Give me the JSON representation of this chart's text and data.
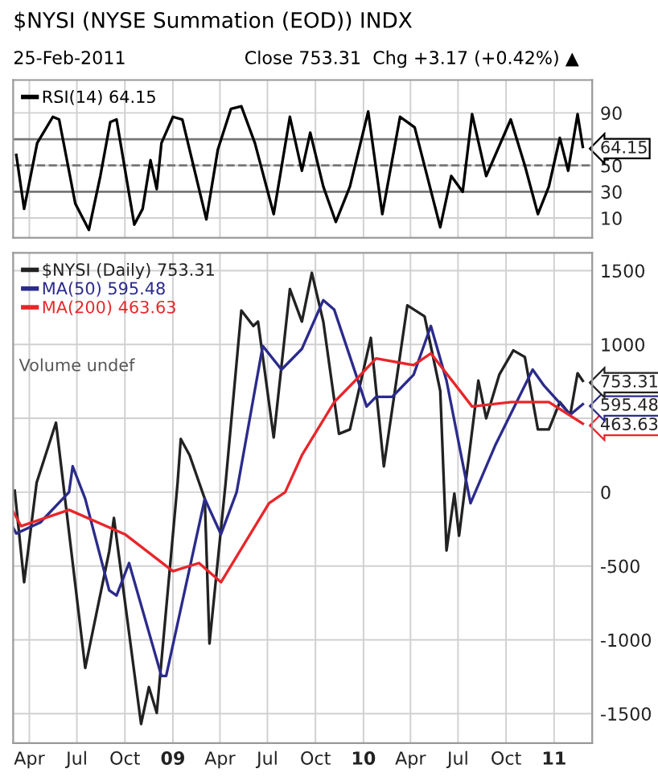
{
  "chart_data": [
    {
      "type": "line",
      "title": "$NYSI (NYSE Summation (EOD)) INDX",
      "subtitle": "25-Feb-2011",
      "annotations": [
        "Close 753.31  Chg +3.17 (+0.42%) ▲"
      ],
      "xticks": [
        {
          "value": "2008-04-01",
          "label": null
        },
        {
          "value": "2008-07-01",
          "label": null
        },
        {
          "value": "2008-10-01",
          "label": null
        },
        {
          "value": "2009-01-01",
          "label": null
        },
        {
          "value": "2009-04-01",
          "label": null
        },
        {
          "value": "2009-07-01",
          "label": null
        },
        {
          "value": "2009-10-01",
          "label": null
        },
        {
          "value": "2010-01-01",
          "label": null
        },
        {
          "value": "2010-04-01",
          "label": null
        },
        {
          "value": "2010-07-01",
          "label": null
        },
        {
          "value": "2010-10-01",
          "label": null
        },
        {
          "value": "2011-01-01",
          "label": null
        }
      ],
      "series": [
        {
          "name": "RSI(14) 64.15",
          "color": "#000000",
          "x": [
            "2008-03-07",
            "2008-03-22",
            "2008-04-16",
            "2008-05-16",
            "2008-05-28",
            "2008-06-28",
            "2008-07-24",
            "2008-08-15",
            "2008-09-03",
            "2008-09-15",
            "2008-10-19",
            "2008-11-04",
            "2008-11-19",
            "2008-12-01",
            "2008-12-10",
            "2009-01-01",
            "2009-01-19",
            "2009-03-06",
            "2009-03-28",
            "2009-04-22",
            "2009-05-12",
            "2009-06-07",
            "2009-07-13",
            "2009-08-13",
            "2009-09-05",
            "2009-09-21",
            "2009-10-16",
            "2009-11-09",
            "2009-12-06",
            "2010-01-10",
            "2010-02-06",
            "2010-03-12",
            "2010-04-09",
            "2010-05-28",
            "2010-06-18",
            "2010-07-10",
            "2010-07-28",
            "2010-08-24",
            "2010-10-10",
            "2010-11-06",
            "2010-12-01",
            "2010-12-22",
            "2011-01-12",
            "2011-01-28",
            "2011-02-15",
            "2011-02-25"
          ],
          "values": [
            58,
            17,
            67,
            87,
            85,
            21,
            1,
            42,
            83,
            85,
            5,
            17,
            54,
            32,
            67,
            87,
            85,
            9,
            62,
            93,
            95,
            67,
            13,
            87,
            46,
            75,
            34,
            7,
            34,
            91,
            13,
            87,
            79,
            3,
            42,
            30,
            89,
            42,
            85,
            50,
            13,
            34,
            71,
            46,
            89,
            64.15
          ]
        }
      ],
      "xlim": [
        "2008-03-01",
        "2011-03-15"
      ],
      "ylim": [
        -5,
        115
      ],
      "yticks": [
        10,
        30,
        50,
        {
          "value": 64.15,
          "label": "64.15"
        },
        90
      ],
      "ref_lines": [
        {
          "axis": "y",
          "value": 70,
          "color": "#777777",
          "line_style": "solid"
        },
        {
          "axis": "y",
          "value": 50,
          "color": "#777777",
          "line_style": "dashed"
        },
        {
          "axis": "y",
          "value": 30,
          "color": "#777777",
          "line_style": "solid"
        }
      ],
      "grid": true,
      "legend": "top left",
      "tick_labels": "y"
    },
    {
      "type": "line",
      "annotations": [
        "Volume undef"
      ],
      "series": [
        {
          "name": "$NYSI (Daily) 753.31",
          "color": "#222222",
          "x": [
            "2008-03-04",
            "2008-03-22",
            "2008-04-15",
            "2008-05-22",
            "2008-07-17",
            "2008-09-01",
            "2008-09-10",
            "2008-11-01",
            "2008-11-16",
            "2008-12-01",
            "2009-01-10",
            "2009-01-16",
            "2009-02-02",
            "2009-03-03",
            "2009-03-12",
            "2009-04-12",
            "2009-05-12",
            "2009-06-04",
            "2009-06-13",
            "2009-07-13",
            "2009-08-13",
            "2009-09-05",
            "2009-09-24",
            "2009-10-16",
            "2009-11-15",
            "2009-12-06",
            "2010-01-15",
            "2010-02-09",
            "2010-03-26",
            "2010-04-28",
            "2010-05-28",
            "2010-06-09",
            "2010-06-24",
            "2010-07-03",
            "2010-08-09",
            "2010-08-24",
            "2010-09-18",
            "2010-10-15",
            "2010-11-06",
            "2010-12-01",
            "2010-12-22",
            "2011-01-12",
            "2011-02-01",
            "2011-02-15",
            "2011-02-25"
          ],
          "values": [
            10,
            -610,
            65,
            470,
            -1190,
            -400,
            -175,
            -1570,
            -1320,
            -1495,
            65,
            360,
            250,
            -45,
            -1025,
            65,
            1230,
            1125,
            1155,
            370,
            1375,
            1155,
            1485,
            1155,
            395,
            425,
            1045,
            175,
            1265,
            1190,
            685,
            -395,
            -10,
            -295,
            755,
            500,
            795,
            960,
            915,
            425,
            425,
            610,
            525,
            805,
            753.31
          ]
        },
        {
          "name": "MA(50) 595.48",
          "color": "#2b2b8c",
          "x": [
            "2008-03-01",
            "2008-03-07",
            "2008-04-22",
            "2008-06-16",
            "2008-06-23",
            "2008-07-17",
            "2008-09-01",
            "2008-09-15",
            "2008-10-09",
            "2008-12-10",
            "2008-12-19",
            "2009-03-03",
            "2009-04-03",
            "2009-05-03",
            "2009-06-22",
            "2009-07-28",
            "2009-09-05",
            "2009-10-16",
            "2009-11-06",
            "2010-01-07",
            "2010-01-25",
            "2010-02-25",
            "2010-04-07",
            "2010-05-10",
            "2010-06-09",
            "2010-07-25",
            "2010-09-10",
            "2010-11-21",
            "2010-12-13",
            "2011-02-01",
            "2011-02-25"
          ],
          "values": [
            -240,
            -280,
            -205,
            0,
            175,
            -45,
            -665,
            -700,
            -480,
            -1245,
            -1245,
            -45,
            -285,
            0,
            990,
            830,
            970,
            1300,
            1235,
            580,
            645,
            645,
            795,
            1125,
            755,
            -75,
            315,
            830,
            720,
            525,
            595.48
          ]
        },
        {
          "name": "MA(200) 463.63",
          "color": "#e8262b",
          "x": [
            "2008-03-01",
            "2008-03-16",
            "2008-06-16",
            "2008-10-01",
            "2009-01-01",
            "2009-02-20",
            "2009-04-03",
            "2009-07-04",
            "2009-08-04",
            "2009-09-05",
            "2009-11-06",
            "2009-12-16",
            "2010-01-25",
            "2010-04-07",
            "2010-05-10",
            "2010-07-28",
            "2010-10-11",
            "2010-12-22",
            "2011-02-25"
          ],
          "values": [
            -130,
            -230,
            -120,
            -285,
            -535,
            -480,
            -610,
            -75,
            0,
            250,
            610,
            755,
            905,
            860,
            940,
            580,
            610,
            610,
            463.63
          ]
        }
      ],
      "xlim": [
        "2008-03-01",
        "2011-03-15"
      ],
      "xticks": [
        {
          "value": "2008-04-01",
          "label": "Apr"
        },
        {
          "value": "2008-07-01",
          "label": "Jul"
        },
        {
          "value": "2008-10-01",
          "label": "Oct"
        },
        {
          "value": "2009-01-01",
          "label": "09"
        },
        {
          "value": "2009-04-01",
          "label": "Apr"
        },
        {
          "value": "2009-07-01",
          "label": "Jul"
        },
        {
          "value": "2009-10-01",
          "label": "Oct"
        },
        {
          "value": "2010-01-01",
          "label": "10"
        },
        {
          "value": "2010-04-01",
          "label": "Apr"
        },
        {
          "value": "2010-07-01",
          "label": "Jul"
        },
        {
          "value": "2010-10-01",
          "label": "Oct"
        },
        {
          "value": "2011-01-01",
          "label": "11"
        }
      ],
      "ylim": [
        -1700,
        1620
      ],
      "yticks": [
        -1500,
        -1000,
        -500,
        0,
        {
          "value": 463.63,
          "label": "463.63"
        },
        {
          "value": 500,
          "label": null
        },
        {
          "value": 595.48,
          "label": "595.48"
        },
        {
          "value": 753.31,
          "label": "753.31"
        },
        1000,
        1500
      ],
      "grid": true,
      "legend": "top left"
    }
  ]
}
